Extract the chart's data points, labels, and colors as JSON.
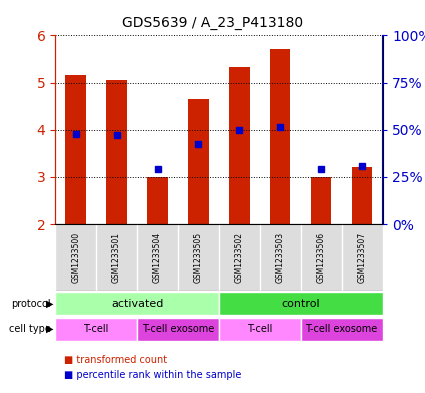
{
  "title": "GDS5639 / A_23_P413180",
  "samples": [
    "GSM1233500",
    "GSM1233501",
    "GSM1233504",
    "GSM1233505",
    "GSM1233502",
    "GSM1233503",
    "GSM1233506",
    "GSM1233507"
  ],
  "transformed_counts": [
    5.17,
    5.05,
    3.0,
    4.65,
    5.32,
    5.72,
    3.0,
    3.2
  ],
  "percentile_ranks": [
    3.9,
    3.88,
    3.17,
    3.7,
    4.0,
    4.05,
    3.17,
    3.22
  ],
  "ylim": [
    2,
    6
  ],
  "yticks": [
    2,
    3,
    4,
    5,
    6
  ],
  "right_yticks": [
    0,
    25,
    50,
    75,
    100
  ],
  "right_ytick_labels": [
    "0%",
    "25%",
    "50%",
    "75%",
    "100%"
  ],
  "bar_color": "#cc2200",
  "marker_color": "#0000cc",
  "protocol_groups": [
    {
      "label": "activated",
      "start": 0,
      "end": 4,
      "color": "#aaffaa"
    },
    {
      "label": "control",
      "start": 4,
      "end": 8,
      "color": "#44dd44"
    }
  ],
  "cell_type_groups": [
    {
      "label": "T-cell",
      "start": 0,
      "end": 2,
      "color": "#ff88ff"
    },
    {
      "label": "T-cell exosome",
      "start": 2,
      "end": 4,
      "color": "#dd44dd"
    },
    {
      "label": "T-cell",
      "start": 4,
      "end": 6,
      "color": "#ff88ff"
    },
    {
      "label": "T-cell exosome",
      "start": 6,
      "end": 8,
      "color": "#dd44dd"
    }
  ],
  "legend_items": [
    {
      "label": "transformed count",
      "color": "#cc2200",
      "marker": "s"
    },
    {
      "label": "percentile rank within the sample",
      "color": "#0000cc",
      "marker": "s"
    }
  ],
  "xlabel_color": "#cc2200",
  "ylabel_left_color": "#cc2200",
  "ylabel_right_color": "#0000cc"
}
